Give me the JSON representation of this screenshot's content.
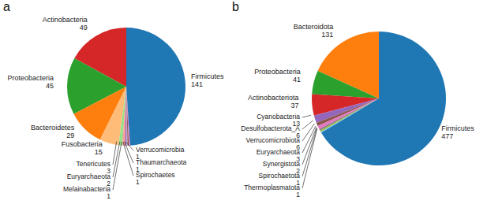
{
  "chart_data": [
    {
      "type": "pie",
      "title": "a",
      "categories": [
        "Actinobacteria",
        "Proteobacteria",
        "Bacteroidetes",
        "Fusobacteria",
        "Tenericutes",
        "Euryarchaeota",
        "Melainabacteria",
        "Spirochaetes",
        "Thaumarchaeota",
        "Verrucomicrobia",
        "Firmicutes"
      ],
      "values": [
        49,
        45,
        29,
        15,
        3,
        2,
        1,
        1,
        1,
        1,
        141
      ],
      "colors": [
        "#d62728",
        "#2ca02c",
        "#ff7f0e",
        "#ffbb78",
        "#98df8a",
        "#ff9896",
        "#9467bd",
        "#c5b0d5",
        "#8c564b",
        "#e377c2",
        "#1f77b4"
      ],
      "data_labels": true
    },
    {
      "type": "pie",
      "title": "b",
      "categories": [
        "Bacteroidota",
        "Proteobacteria",
        "Actinobacteriota",
        "Cyanobacteria",
        "Desulfobacterota_A",
        "Verrucomicrobiota",
        "Euryarchaeota",
        "Synergistota",
        "Spirochaetota",
        "Thermoplasmatota",
        "Firmicutes"
      ],
      "values": [
        131,
        41,
        37,
        13,
        6,
        6,
        3,
        2,
        1,
        1,
        477
      ],
      "colors": [
        "#ff7f0e",
        "#2ca02c",
        "#d62728",
        "#9467bd",
        "#8c564b",
        "#e377c2",
        "#7f7f7f",
        "#bcbd22",
        "#17becf",
        "#aec7e8",
        "#1f77b4"
      ],
      "data_labels": true
    }
  ]
}
